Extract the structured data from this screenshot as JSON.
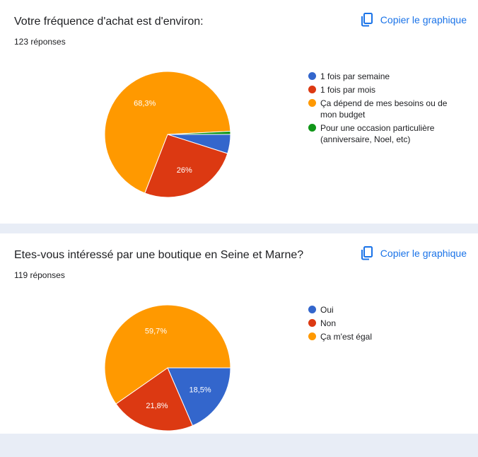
{
  "copy_label": "Copier le graphique",
  "colors": {
    "blue": "#3366cc",
    "red": "#dc3912",
    "orange": "#ff9900",
    "green": "#109618",
    "link": "#1a73e8"
  },
  "questions": [
    {
      "title": "Votre fréquence d'achat est d'environ:",
      "responses": "123 réponses"
    },
    {
      "title": "Etes-vous intéressé par une boutique en Seine et Marne?",
      "responses": "119 réponses"
    }
  ],
  "chart_data": [
    {
      "type": "pie",
      "categories": [
        "1 fois par semaine",
        "1 fois par mois",
        "Ça dépend de mes besoins ou de mon budget",
        "Pour une occasion particulière (anniversaire, Noel, etc)"
      ],
      "values": [
        4.9,
        26.0,
        68.3,
        0.8
      ],
      "labels": [
        "",
        "26%",
        "68,3%",
        ""
      ],
      "colors": [
        "#3366cc",
        "#dc3912",
        "#ff9900",
        "#109618"
      ],
      "legend": "right"
    },
    {
      "type": "pie",
      "categories": [
        "Oui",
        "Non",
        "Ça m'est égal"
      ],
      "values": [
        18.5,
        21.8,
        59.7
      ],
      "labels": [
        "18,5%",
        "21,8%",
        "59,7%"
      ],
      "colors": [
        "#3366cc",
        "#dc3912",
        "#ff9900"
      ],
      "legend": "right"
    }
  ]
}
